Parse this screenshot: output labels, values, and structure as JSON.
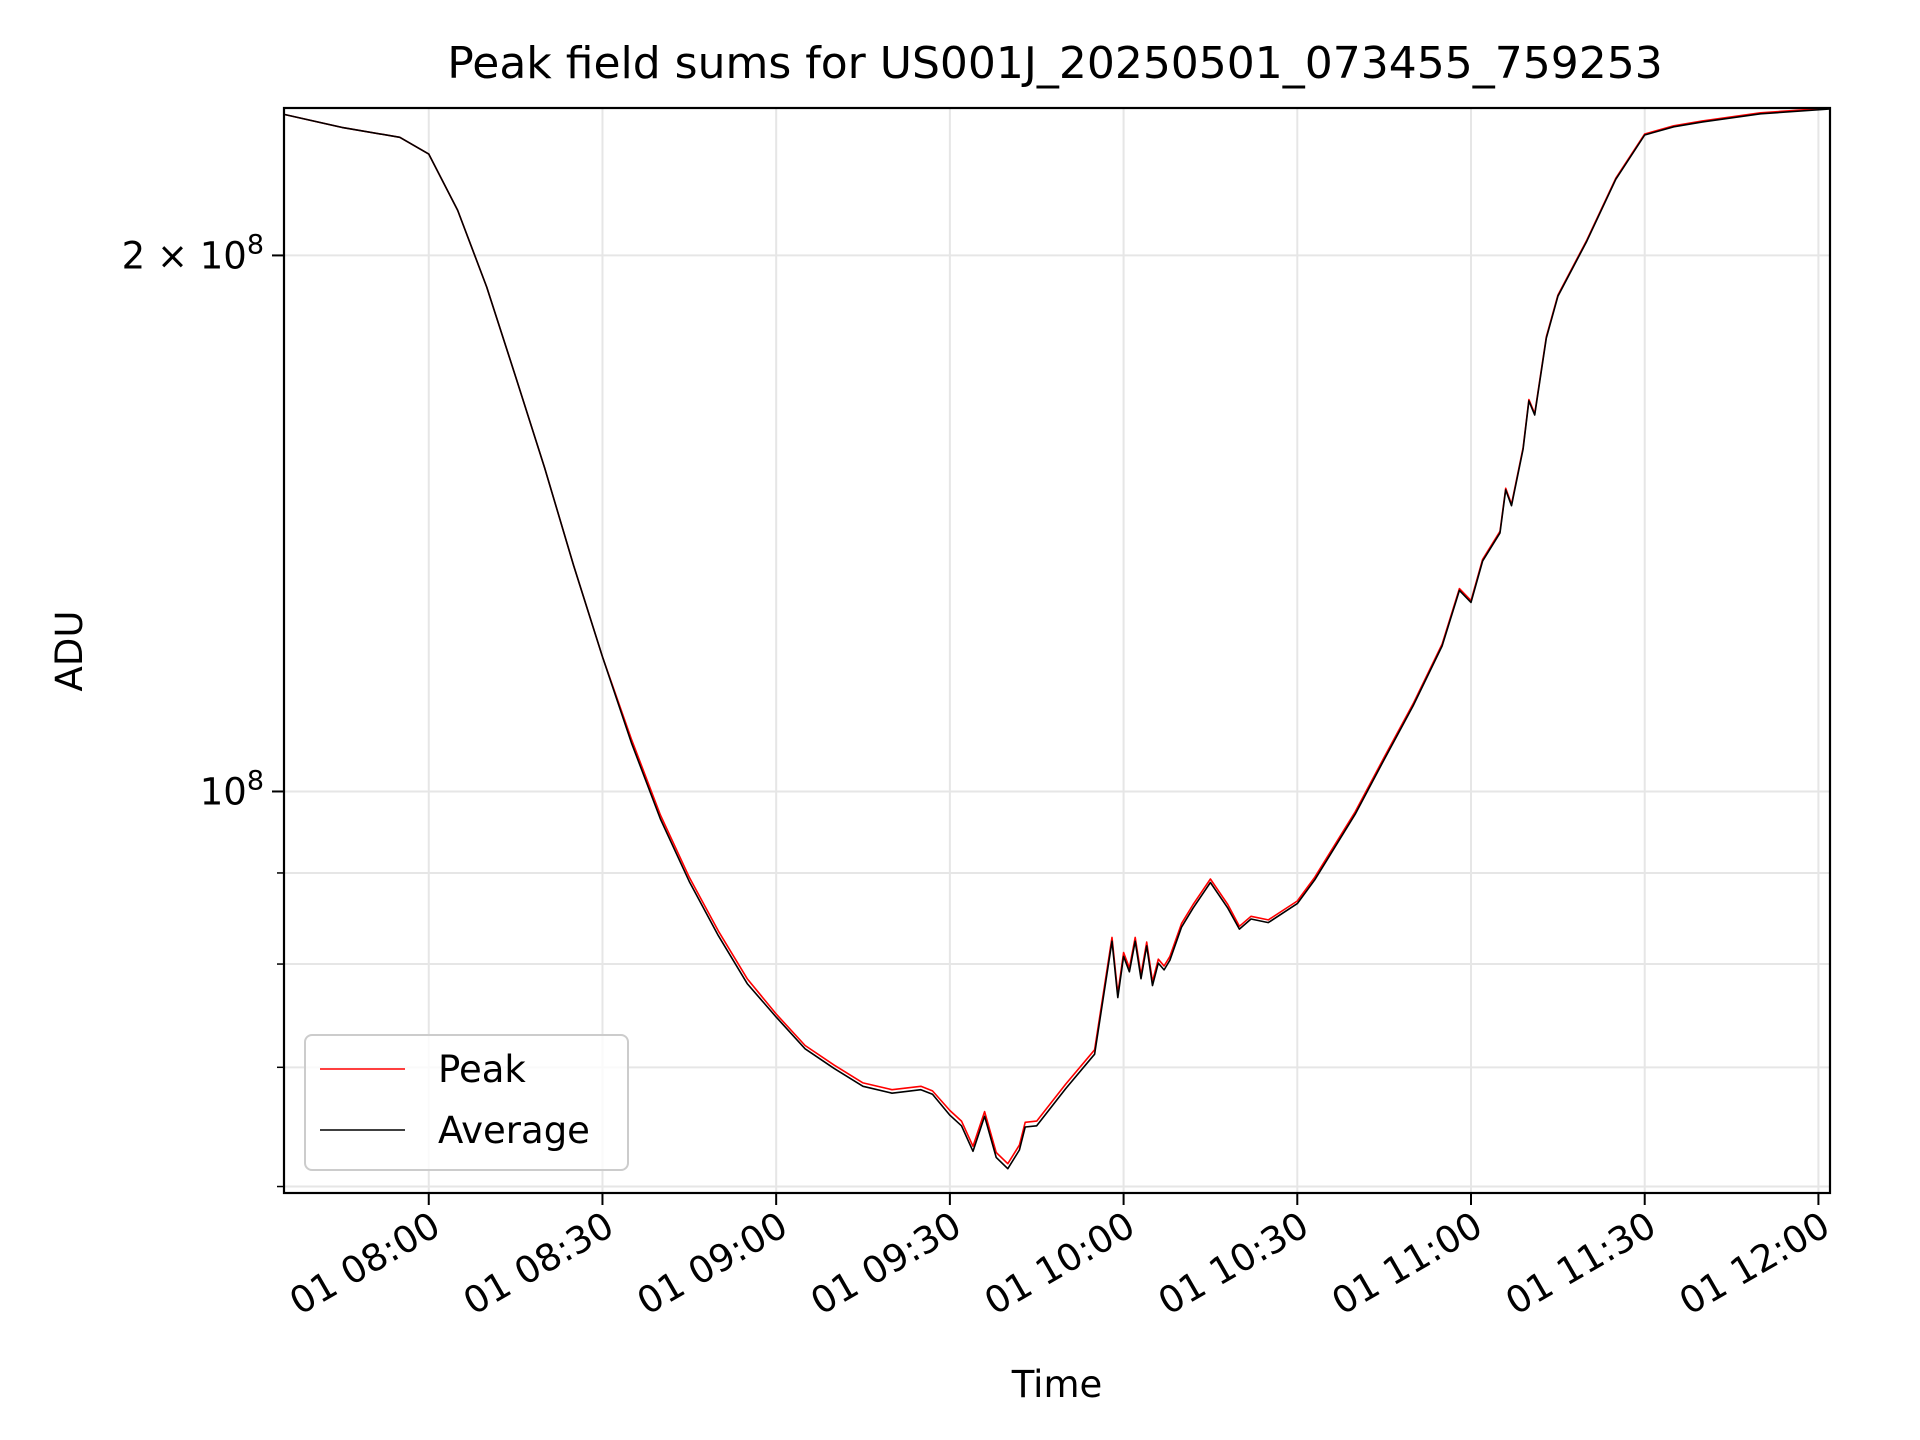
{
  "chart_data": {
    "type": "line",
    "title": "Peak field sums for US001J_20250501_073455_759253",
    "xlabel": "Time",
    "ylabel": "ADU",
    "x_tick_labels": [
      "01 08:00",
      "01 08:30",
      "01 09:00",
      "01 09:30",
      "01 10:00",
      "01 10:30",
      "01 11:00",
      "01 11:30",
      "01 12:00"
    ],
    "y_tick_labels": [
      {
        "value": 100000000,
        "base": "10",
        "exp": "8",
        "coef": ""
      },
      {
        "value": 200000000,
        "base": "10",
        "exp": "8",
        "coef": "2 × "
      }
    ],
    "y_minor_ticks": [
      60000000,
      70000000,
      80000000,
      90000000
    ],
    "xlim": [
      "2025-05-01 07:35",
      "2025-05-01 12:02"
    ],
    "ylim": [
      59500000,
      242000000
    ],
    "yscale": "log",
    "grid": true,
    "legend_position": "lower-left",
    "series": [
      {
        "name": "Peak",
        "color": "#ff0000",
        "x": [
          "2025-05-01 07:35",
          "2025-05-01 07:45",
          "2025-05-01 07:55",
          "2025-05-01 08:00",
          "2025-05-01 08:05",
          "2025-05-01 08:10",
          "2025-05-01 08:15",
          "2025-05-01 08:20",
          "2025-05-01 08:25",
          "2025-05-01 08:30",
          "2025-05-01 08:35",
          "2025-05-01 08:40",
          "2025-05-01 08:45",
          "2025-05-01 08:50",
          "2025-05-01 08:55",
          "2025-05-01 09:00",
          "2025-05-01 09:05",
          "2025-05-01 09:10",
          "2025-05-01 09:15",
          "2025-05-01 09:20",
          "2025-05-01 09:25",
          "2025-05-01 09:27",
          "2025-05-01 09:30",
          "2025-05-01 09:32",
          "2025-05-01 09:34",
          "2025-05-01 09:36",
          "2025-05-01 09:38",
          "2025-05-01 09:40",
          "2025-05-01 09:42",
          "2025-05-01 09:43",
          "2025-05-01 09:45",
          "2025-05-01 09:50",
          "2025-05-01 09:55",
          "2025-05-01 09:58",
          "2025-05-01 09:59",
          "2025-05-01 10:00",
          "2025-05-01 10:01",
          "2025-05-01 10:02",
          "2025-05-01 10:03",
          "2025-05-01 10:04",
          "2025-05-01 10:05",
          "2025-05-01 10:06",
          "2025-05-01 10:07",
          "2025-05-01 10:08",
          "2025-05-01 10:10",
          "2025-05-01 10:12",
          "2025-05-01 10:15",
          "2025-05-01 10:18",
          "2025-05-01 10:20",
          "2025-05-01 10:22",
          "2025-05-01 10:25",
          "2025-05-01 10:30",
          "2025-05-01 10:33",
          "2025-05-01 10:40",
          "2025-05-01 10:45",
          "2025-05-01 10:50",
          "2025-05-01 10:55",
          "2025-05-01 10:58",
          "2025-05-01 11:00",
          "2025-05-01 11:02",
          "2025-05-01 11:05",
          "2025-05-01 11:06",
          "2025-05-01 11:07",
          "2025-05-01 11:09",
          "2025-05-01 11:10",
          "2025-05-01 11:11",
          "2025-05-01 11:13",
          "2025-05-01 11:15",
          "2025-05-01 11:20",
          "2025-05-01 11:25",
          "2025-05-01 11:30",
          "2025-05-01 11:35",
          "2025-05-01 11:40",
          "2025-05-01 11:50",
          "2025-05-01 12:02"
        ],
        "y": [
          240000000,
          236000000,
          233000000,
          228000000,
          212000000,
          192000000,
          171000000,
          152000000,
          134000000,
          119000000,
          107000000,
          97000000,
          89500000,
          83500000,
          78500000,
          75000000,
          72000000,
          70200000,
          68600000,
          68000000,
          68300000,
          67900000,
          66200000,
          65300000,
          63200000,
          66100000,
          62700000,
          61800000,
          63300000,
          65200000,
          65300000,
          68500000,
          71600000,
          82800000,
          77000000,
          81200000,
          79600000,
          82800000,
          78900000,
          82300000,
          78200000,
          80500000,
          79800000,
          80800000,
          84300000,
          86400000,
          89300000,
          86400000,
          84000000,
          85100000,
          84700000,
          86800000,
          89500000,
          97400000,
          104500000,
          112000000,
          121000000,
          130000000,
          128000000,
          135000000,
          140000000,
          148000000,
          145000000,
          156000000,
          166000000,
          163000000,
          180000000,
          190000000,
          204000000,
          221000000,
          234000000,
          236500000,
          238000000,
          240500000,
          242000000
        ]
      },
      {
        "name": "Average",
        "color": "#000000",
        "x": [
          "2025-05-01 07:35",
          "2025-05-01 07:45",
          "2025-05-01 07:55",
          "2025-05-01 08:00",
          "2025-05-01 08:05",
          "2025-05-01 08:10",
          "2025-05-01 08:15",
          "2025-05-01 08:20",
          "2025-05-01 08:25",
          "2025-05-01 08:30",
          "2025-05-01 08:35",
          "2025-05-01 08:40",
          "2025-05-01 08:45",
          "2025-05-01 08:50",
          "2025-05-01 08:55",
          "2025-05-01 09:00",
          "2025-05-01 09:05",
          "2025-05-01 09:10",
          "2025-05-01 09:15",
          "2025-05-01 09:20",
          "2025-05-01 09:25",
          "2025-05-01 09:27",
          "2025-05-01 09:30",
          "2025-05-01 09:32",
          "2025-05-01 09:34",
          "2025-05-01 09:36",
          "2025-05-01 09:38",
          "2025-05-01 09:40",
          "2025-05-01 09:42",
          "2025-05-01 09:43",
          "2025-05-01 09:45",
          "2025-05-01 09:50",
          "2025-05-01 09:55",
          "2025-05-01 09:58",
          "2025-05-01 09:59",
          "2025-05-01 10:00",
          "2025-05-01 10:01",
          "2025-05-01 10:02",
          "2025-05-01 10:03",
          "2025-05-01 10:04",
          "2025-05-01 10:05",
          "2025-05-01 10:06",
          "2025-05-01 10:07",
          "2025-05-01 10:08",
          "2025-05-01 10:10",
          "2025-05-01 10:12",
          "2025-05-01 10:15",
          "2025-05-01 10:18",
          "2025-05-01 10:20",
          "2025-05-01 10:22",
          "2025-05-01 10:25",
          "2025-05-01 10:30",
          "2025-05-01 10:33",
          "2025-05-01 10:40",
          "2025-05-01 10:45",
          "2025-05-01 10:50",
          "2025-05-01 10:55",
          "2025-05-01 10:58",
          "2025-05-01 11:00",
          "2025-05-01 11:02",
          "2025-05-01 11:05",
          "2025-05-01 11:06",
          "2025-05-01 11:07",
          "2025-05-01 11:09",
          "2025-05-01 11:10",
          "2025-05-01 11:11",
          "2025-05-01 11:13",
          "2025-05-01 11:15",
          "2025-05-01 11:20",
          "2025-05-01 11:25",
          "2025-05-01 11:30",
          "2025-05-01 11:35",
          "2025-05-01 11:40",
          "2025-05-01 11:50",
          "2025-05-01 12:02"
        ],
        "y": [
          240000000,
          236000000,
          233000000,
          228000000,
          212000000,
          192000000,
          171000000,
          152000000,
          134000000,
          119000000,
          106500000,
          96500000,
          89000000,
          83000000,
          78000000,
          74700000,
          71700000,
          69900000,
          68300000,
          67700000,
          68000000,
          67600000,
          65800000,
          64900000,
          62800000,
          65700000,
          62300000,
          61400000,
          62900000,
          64800000,
          64900000,
          68100000,
          71200000,
          82400000,
          76600000,
          80800000,
          79200000,
          82400000,
          78500000,
          81900000,
          77800000,
          80100000,
          79400000,
          80400000,
          83900000,
          86000000,
          88900000,
          86000000,
          83700000,
          84800000,
          84400000,
          86500000,
          89200000,
          97100000,
          104200000,
          111700000,
          120700000,
          129700000,
          127700000,
          134700000,
          139700000,
          147700000,
          144700000,
          155700000,
          165700000,
          162700000,
          179700000,
          189700000,
          203700000,
          220700000,
          233700000,
          236200000,
          237700000,
          240200000,
          241700000
        ]
      }
    ]
  }
}
